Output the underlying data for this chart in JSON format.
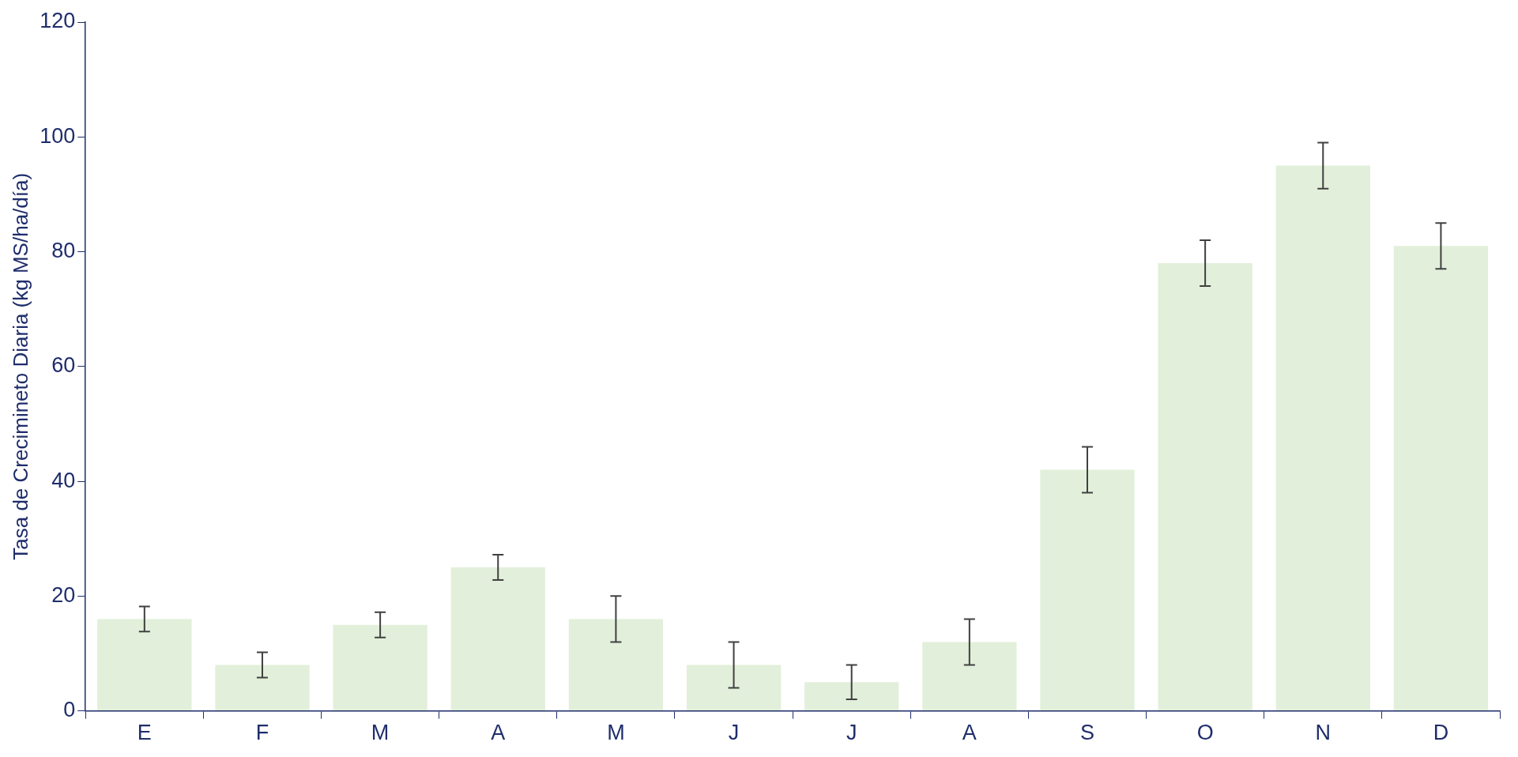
{
  "chart_data": {
    "type": "bar",
    "ylabel": "Tasa de Crecimineto Diaria (kg MS/ha/día)",
    "categories": [
      "E",
      "F",
      "M",
      "A",
      "M",
      "J",
      "J",
      "A",
      "S",
      "O",
      "N",
      "D"
    ],
    "values": [
      16,
      8,
      15,
      25,
      16,
      8,
      5,
      12,
      42,
      78,
      95,
      81
    ],
    "errors": [
      2.2,
      2.2,
      2.2,
      2.2,
      4,
      4,
      3,
      4,
      4,
      4,
      4,
      4
    ],
    "color": "#e2efda",
    "ylim": [
      0,
      120
    ],
    "yticks": [
      0,
      20,
      40,
      60,
      80,
      100,
      120
    ],
    "grid": false,
    "legend": false
  }
}
